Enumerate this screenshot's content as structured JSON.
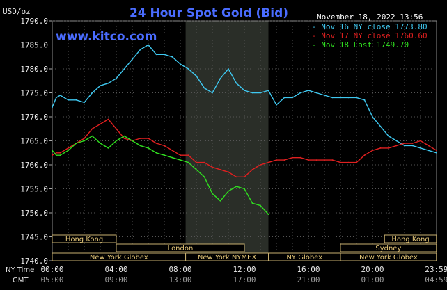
{
  "chart_data": {
    "type": "line",
    "title": "24 Hour Spot Gold (Bid)",
    "ylabel": "USD/oz",
    "watermark": "www.kitco.com",
    "timestamp": "November 18, 2022 13:56",
    "ylim": [
      1740,
      1790
    ],
    "yticks": [
      "1790.0",
      "1785.0",
      "1780.0",
      "1775.0",
      "1770.0",
      "1765.0",
      "1760.0",
      "1755.0",
      "1750.0",
      "1745.0",
      "1740.0"
    ],
    "xlim": [
      0,
      24
    ],
    "grid": true,
    "legend_position": "top-right",
    "x_ny_label": "NY Time",
    "x_gmt_label": "GMT",
    "x_ny_ticks": [
      "00:00",
      "04:00",
      "08:00",
      "12:00",
      "16:00",
      "20:00",
      "23:59"
    ],
    "x_gmt_ticks": [
      "05:00",
      "09:00",
      "13:00",
      "17:00",
      "21:00",
      "01:00",
      "04:59"
    ],
    "shaded_session": [
      8.33,
      13.5
    ],
    "sessions": [
      {
        "name": "Hong Kong",
        "start": 0,
        "end": 4
      },
      {
        "name": "London",
        "start": 4,
        "end": 12
      },
      {
        "name": "New York Globex",
        "start": 0,
        "end": 8.33
      },
      {
        "name": "New York NYMEX",
        "start": 8.33,
        "end": 13.5
      },
      {
        "name": "NY Globex",
        "start": 13.5,
        "end": 18
      },
      {
        "name": "Hong Kong",
        "start": 20.75,
        "end": 23.99
      },
      {
        "name": "Sydney",
        "start": 18,
        "end": 23.99
      },
      {
        "name": "New York Globex",
        "start": 18,
        "end": 23.99
      }
    ],
    "series": [
      {
        "name": "Nov 16 NY close 1773.80",
        "color": "#3fc8f0",
        "x": [
          0,
          0.25,
          0.5,
          1,
          1.5,
          2,
          2.5,
          3,
          3.5,
          4,
          4.5,
          5,
          5.5,
          6,
          6.5,
          7,
          7.5,
          8,
          8.5,
          9,
          9.5,
          10,
          10.5,
          11,
          11.5,
          12,
          12.5,
          13,
          13.5,
          14,
          14.5,
          15,
          15.5,
          16,
          16.5,
          17,
          17.5,
          18,
          18.5,
          19,
          19.5,
          20,
          20.5,
          21,
          21.5,
          22,
          22.5,
          23,
          23.5,
          24
        ],
        "y": [
          1772,
          1774,
          1774.5,
          1773.5,
          1773.5,
          1773,
          1775,
          1776.5,
          1777,
          1778,
          1780,
          1782,
          1784,
          1785,
          1783,
          1783,
          1782.5,
          1781,
          1780,
          1778.5,
          1776,
          1775,
          1778,
          1780,
          1777,
          1775.5,
          1775,
          1775,
          1775.5,
          1772.5,
          1774,
          1774,
          1775,
          1775.5,
          1775,
          1774.5,
          1774,
          1774,
          1774,
          1774,
          1773.5,
          1770,
          1768,
          1766,
          1765,
          1764,
          1764,
          1763.5,
          1763,
          1762.5
        ]
      },
      {
        "name": "Nov 17 NY close 1760.60",
        "color": "#e02020",
        "x": [
          0,
          0.25,
          0.5,
          1,
          1.5,
          2,
          2.5,
          3,
          3.5,
          4,
          4.5,
          5,
          5.5,
          6,
          6.5,
          7,
          7.5,
          8,
          8.5,
          9,
          9.5,
          10,
          10.5,
          11,
          11.5,
          12,
          12.5,
          13,
          13.5,
          14,
          14.5,
          15,
          15.5,
          16,
          16.5,
          17,
          17.5,
          18,
          18.5,
          19,
          19.5,
          20,
          20.5,
          21,
          21.5,
          22,
          22.5,
          23,
          23.5,
          24
        ],
        "y": [
          1762,
          1762.5,
          1762.5,
          1763.5,
          1764.5,
          1765.5,
          1767.5,
          1768.5,
          1769.5,
          1767.5,
          1765.5,
          1765,
          1765.5,
          1765.5,
          1764.5,
          1764,
          1763,
          1762,
          1762,
          1760.5,
          1760.5,
          1759.5,
          1759,
          1758.5,
          1757.5,
          1757.5,
          1759,
          1760,
          1760.5,
          1761,
          1761,
          1761.5,
          1761.5,
          1761,
          1761,
          1761,
          1761,
          1760.5,
          1760.5,
          1760.5,
          1762,
          1763,
          1763.5,
          1763.5,
          1764,
          1764.5,
          1764.5,
          1765,
          1764,
          1763
        ]
      },
      {
        "name": "Nov 18 Last 1749.70",
        "color": "#30e020",
        "x": [
          0,
          0.25,
          0.5,
          1,
          1.5,
          2,
          2.5,
          3,
          3.5,
          4,
          4.5,
          5,
          5.5,
          6,
          6.5,
          7,
          7.5,
          8,
          8.5,
          9,
          9.5,
          10,
          10.5,
          11,
          11.5,
          12,
          12.5,
          13,
          13.5
        ],
        "y": [
          1763,
          1762,
          1762,
          1763,
          1764.5,
          1765,
          1766,
          1764.5,
          1763.5,
          1765,
          1766,
          1765,
          1764,
          1763.5,
          1762.5,
          1762,
          1761.5,
          1761,
          1760.5,
          1759,
          1757.5,
          1754,
          1752.5,
          1754.5,
          1755.5,
          1755,
          1752,
          1751.5,
          1749.7
        ]
      }
    ]
  }
}
